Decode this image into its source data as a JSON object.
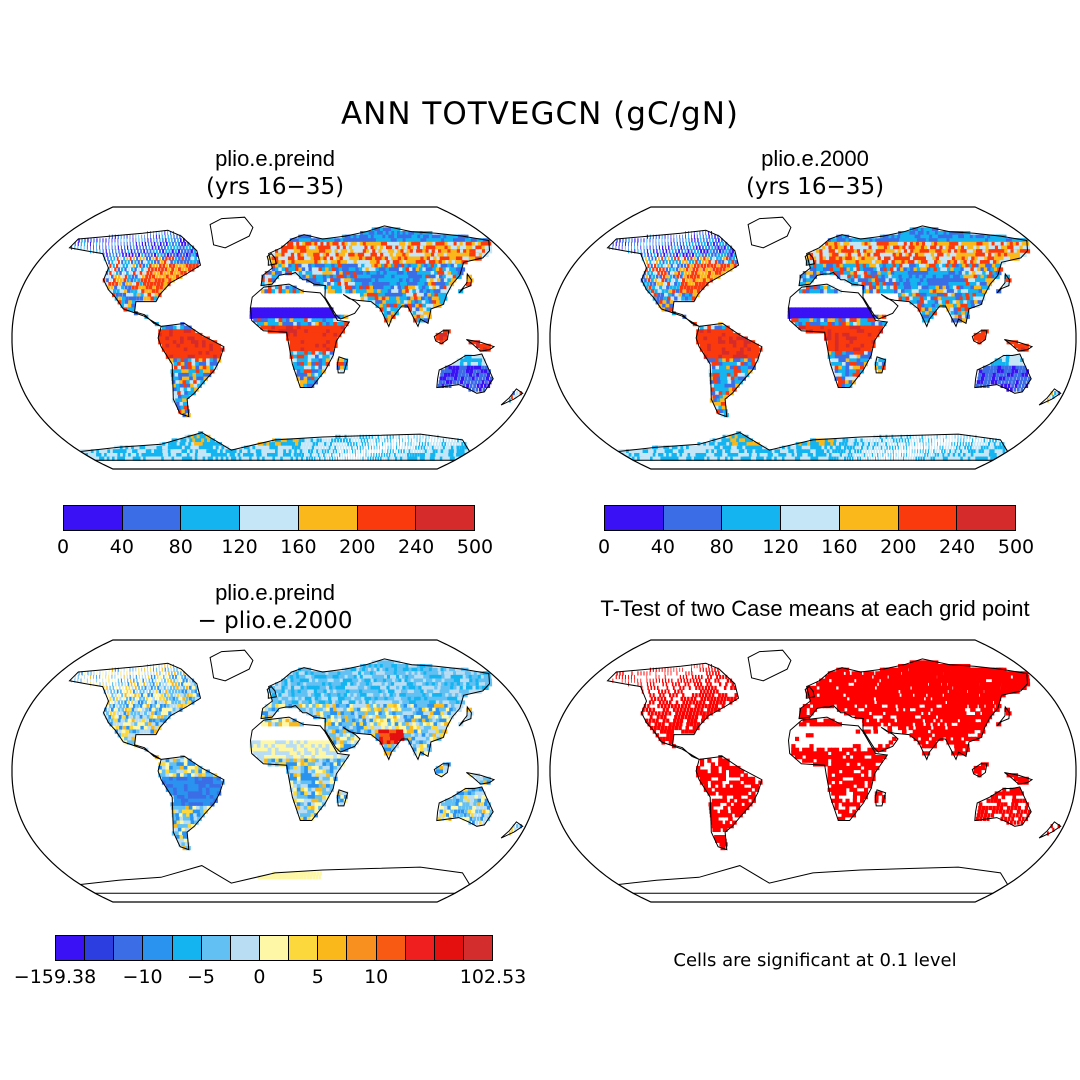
{
  "figure": {
    "title": "ANN TOTVEGCN (gC/gN)"
  },
  "panels": [
    {
      "id": "preind",
      "title": "plio.e.preind",
      "subtitle": "(yrs 16−35)",
      "colorbar": {
        "colors": [
          "#3a10f5",
          "#3b6ee6",
          "#14b4f0",
          "#c4e6f6",
          "#fbb81a",
          "#fa3a0c",
          "#d62b2b"
        ],
        "labels": [
          "0",
          "40",
          "80",
          "120",
          "160",
          "200",
          "240",
          "500"
        ]
      }
    },
    {
      "id": "y2000",
      "title": "plio.e.2000",
      "subtitle": "(yrs 16−35)",
      "colorbar": {
        "colors": [
          "#3a10f5",
          "#3b6ee6",
          "#14b4f0",
          "#c4e6f6",
          "#fbb81a",
          "#fa3a0c",
          "#d62b2b"
        ],
        "labels": [
          "0",
          "40",
          "80",
          "120",
          "160",
          "200",
          "240",
          "500"
        ]
      }
    },
    {
      "id": "diff",
      "title": "plio.e.preind",
      "subtitle": "− plio.e.2000",
      "colorbar": {
        "colors": [
          "#3a10f5",
          "#2c3ee0",
          "#3b6ee6",
          "#2a93ef",
          "#14b4f0",
          "#63c0f2",
          "#b9ddf3",
          "#fdf7a6",
          "#fcd83d",
          "#fbb81a",
          "#f8901f",
          "#f85a14",
          "#ef1f1f",
          "#e40f0f",
          "#d32d2d"
        ],
        "labels": [
          "−159.38",
          "−10",
          "−5",
          "0",
          "5",
          "10",
          "102.53"
        ]
      }
    },
    {
      "id": "ttest",
      "title": "T-Test of two Case means at each grid point",
      "note": "Cells are significant at 0.1 level",
      "sig_color": "#ff0000"
    }
  ]
}
